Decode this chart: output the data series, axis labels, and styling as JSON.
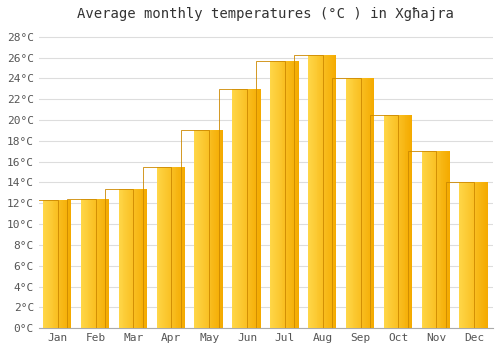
{
  "title": "Average monthly temperatures (°C ) in Xgħajra",
  "months": [
    "Jan",
    "Feb",
    "Mar",
    "Apr",
    "May",
    "Jun",
    "Jul",
    "Aug",
    "Sep",
    "Oct",
    "Nov",
    "Dec"
  ],
  "temperatures": [
    12.3,
    12.4,
    13.4,
    15.5,
    19.0,
    23.0,
    25.7,
    26.2,
    24.0,
    20.5,
    17.0,
    14.0
  ],
  "bar_color_left": "#FFD060",
  "bar_color_right": "#F5A800",
  "bar_edge_color": "#CC8800",
  "ylim": [
    0,
    29
  ],
  "yticks": [
    0,
    2,
    4,
    6,
    8,
    10,
    12,
    14,
    16,
    18,
    20,
    22,
    24,
    26,
    28
  ],
  "ytick_labels": [
    "0°C",
    "2°C",
    "4°C",
    "6°C",
    "8°C",
    "10°C",
    "12°C",
    "14°C",
    "16°C",
    "18°C",
    "20°C",
    "22°C",
    "24°C",
    "26°C",
    "28°C"
  ],
  "bg_color": "#ffffff",
  "grid_color": "#dddddd",
  "title_fontsize": 10,
  "tick_fontsize": 8,
  "bar_width": 0.75
}
